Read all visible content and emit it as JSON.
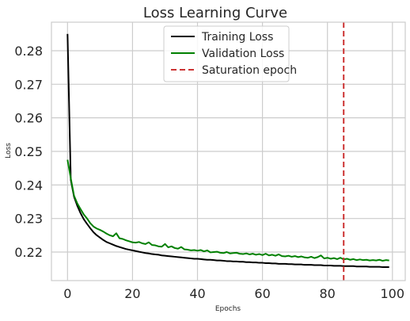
{
  "chart_data": {
    "type": "line",
    "title": "Loss Learning Curve",
    "xlabel": "Epochs",
    "ylabel": "Loss",
    "xlim": [
      -4.95,
      103.95
    ],
    "ylim": [
      0.2115,
      0.2885
    ],
    "xticks": [
      0,
      20,
      40,
      60,
      80,
      100
    ],
    "yticks": [
      0.22,
      0.23,
      0.24,
      0.25,
      0.26,
      0.27,
      0.28
    ],
    "grid": true,
    "legend_position": "top-center",
    "series": [
      {
        "name": "Training Loss",
        "color": "#000000",
        "x": [
          0,
          1,
          2,
          3,
          4,
          5,
          6,
          7,
          8,
          9,
          10,
          11,
          12,
          13,
          14,
          15,
          16,
          17,
          18,
          19,
          20,
          21,
          22,
          23,
          24,
          25,
          26,
          27,
          28,
          29,
          30,
          31,
          32,
          33,
          34,
          35,
          36,
          37,
          38,
          39,
          40,
          41,
          42,
          43,
          44,
          45,
          46,
          47,
          48,
          49,
          50,
          51,
          52,
          53,
          54,
          55,
          56,
          57,
          58,
          59,
          60,
          61,
          62,
          63,
          64,
          65,
          66,
          67,
          68,
          69,
          70,
          71,
          72,
          73,
          74,
          75,
          76,
          77,
          78,
          79,
          80,
          81,
          82,
          83,
          84,
          85,
          86,
          87,
          88,
          89,
          90,
          91,
          92,
          93,
          94,
          95,
          96,
          97,
          98,
          99
        ],
        "values": [
          0.285,
          0.2415,
          0.2365,
          0.2338,
          0.2316,
          0.2298,
          0.2284,
          0.2271,
          0.2259,
          0.225,
          0.2243,
          0.2236,
          0.223,
          0.2226,
          0.2222,
          0.2218,
          0.2215,
          0.2212,
          0.2209,
          0.2207,
          0.2205,
          0.2203,
          0.2201,
          0.2199,
          0.2197,
          0.2196,
          0.2194,
          0.2193,
          0.2192,
          0.219,
          0.2189,
          0.2188,
          0.2187,
          0.2186,
          0.2185,
          0.2184,
          0.2183,
          0.2182,
          0.2181,
          0.218,
          0.218,
          0.2179,
          0.2178,
          0.2177,
          0.2177,
          0.2176,
          0.2175,
          0.2175,
          0.2174,
          0.2173,
          0.2173,
          0.2172,
          0.2172,
          0.2171,
          0.2171,
          0.217,
          0.217,
          0.2169,
          0.2169,
          0.2168,
          0.2168,
          0.2167,
          0.2167,
          0.2166,
          0.2166,
          0.2165,
          0.2165,
          0.2165,
          0.2164,
          0.2164,
          0.2163,
          0.2163,
          0.2163,
          0.2162,
          0.2162,
          0.2162,
          0.2161,
          0.2161,
          0.2161,
          0.216,
          0.216,
          0.216,
          0.2159,
          0.2159,
          0.2159,
          0.2158,
          0.2158,
          0.2158,
          0.2158,
          0.2157,
          0.2157,
          0.2157,
          0.2157,
          0.2156,
          0.2156,
          0.2156,
          0.2156,
          0.2155,
          0.2155,
          0.2155
        ]
      },
      {
        "name": "Validation Loss",
        "color": "#008000",
        "x": [
          0,
          1,
          2,
          3,
          4,
          5,
          6,
          7,
          8,
          9,
          10,
          11,
          12,
          13,
          14,
          15,
          16,
          17,
          18,
          19,
          20,
          21,
          22,
          23,
          24,
          25,
          26,
          27,
          28,
          29,
          30,
          31,
          32,
          33,
          34,
          35,
          36,
          37,
          38,
          39,
          40,
          41,
          42,
          43,
          44,
          45,
          46,
          47,
          48,
          49,
          50,
          51,
          52,
          53,
          54,
          55,
          56,
          57,
          58,
          59,
          60,
          61,
          62,
          63,
          64,
          65,
          66,
          67,
          68,
          69,
          70,
          71,
          72,
          73,
          74,
          75,
          76,
          77,
          78,
          79,
          80,
          81,
          82,
          83,
          84,
          85,
          86,
          87,
          88,
          89,
          90,
          91,
          92,
          93,
          94,
          95,
          96,
          97,
          98,
          99
        ],
        "values": [
          0.2475,
          0.242,
          0.2368,
          0.2345,
          0.2328,
          0.2312,
          0.23,
          0.2286,
          0.2276,
          0.227,
          0.2266,
          0.2261,
          0.2255,
          0.225,
          0.2247,
          0.2256,
          0.2241,
          0.2239,
          0.2235,
          0.2232,
          0.2229,
          0.2228,
          0.223,
          0.2226,
          0.2224,
          0.2229,
          0.2221,
          0.222,
          0.2217,
          0.2216,
          0.2224,
          0.2214,
          0.2217,
          0.2212,
          0.221,
          0.2215,
          0.2208,
          0.2207,
          0.2205,
          0.2206,
          0.2204,
          0.2206,
          0.2202,
          0.2205,
          0.2199,
          0.22,
          0.2201,
          0.2198,
          0.2197,
          0.22,
          0.2196,
          0.2197,
          0.2198,
          0.2195,
          0.2194,
          0.2196,
          0.2193,
          0.2195,
          0.2192,
          0.2194,
          0.2191,
          0.2195,
          0.219,
          0.2192,
          0.2189,
          0.2193,
          0.2188,
          0.2187,
          0.2189,
          0.2186,
          0.2188,
          0.2185,
          0.2187,
          0.2184,
          0.2183,
          0.2186,
          0.2182,
          0.2185,
          0.219,
          0.2181,
          0.2183,
          0.218,
          0.2182,
          0.2179,
          0.2183,
          0.2178,
          0.218,
          0.2177,
          0.2179,
          0.2176,
          0.2178,
          0.2176,
          0.2177,
          0.2175,
          0.2176,
          0.2175,
          0.2177,
          0.2174,
          0.2176,
          0.2175
        ]
      }
    ],
    "reference_lines": [
      {
        "name": "Saturation epoch",
        "orientation": "vertical",
        "x": 85,
        "color": "#cc3333",
        "style": "dashed"
      }
    ]
  }
}
